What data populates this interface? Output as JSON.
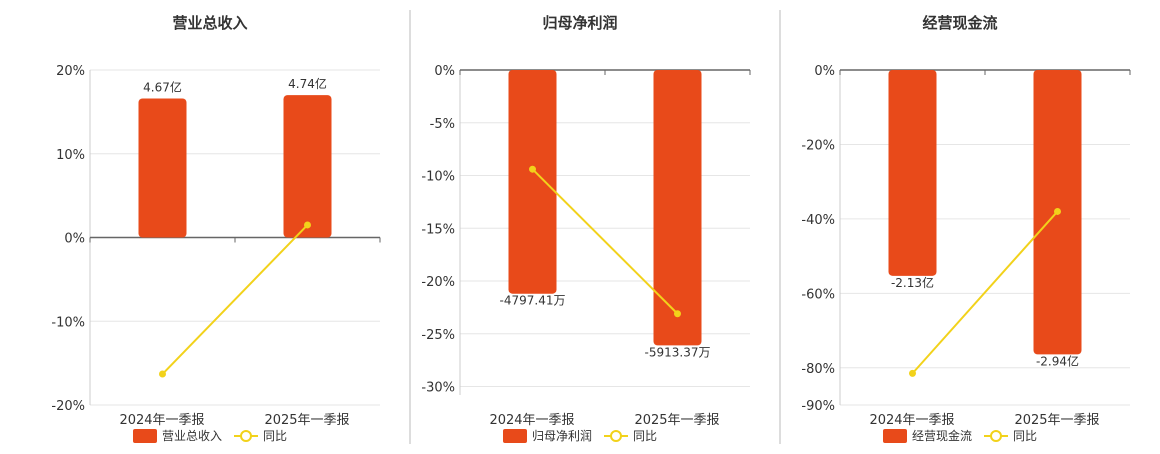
{
  "colors": {
    "bar": "#E84A1A",
    "line": "#F2D21B",
    "grid": "#E6E6E6",
    "axis": "#666666",
    "divider": "#BBBBBB"
  },
  "chart_data": [
    {
      "type": "bar",
      "title": "营业总收入",
      "categories": [
        "2024年一季报",
        "2025年一季报"
      ],
      "series": [
        {
          "name": "营业总收入",
          "type": "bar",
          "values": [
            16.6,
            17.0
          ],
          "labels": [
            "4.67亿",
            "4.74亿"
          ]
        },
        {
          "name": "同比",
          "type": "line",
          "values": [
            -16.3,
            1.5
          ]
        }
      ],
      "ylim": [
        -20,
        20
      ],
      "yticks": [
        20,
        10,
        0,
        -10,
        -20
      ],
      "ytick_labels": [
        "20%",
        "10%",
        "0%",
        "-10%",
        "-20%"
      ],
      "grid": true,
      "legend": "bottom-center"
    },
    {
      "type": "bar",
      "title": "归母净利润",
      "categories": [
        "2024年一季报",
        "2025年一季报"
      ],
      "series": [
        {
          "name": "归母净利润",
          "type": "bar",
          "values": [
            -21.2,
            -26.1
          ],
          "labels": [
            "-4797.41万",
            "-5913.37万"
          ]
        },
        {
          "name": "同比",
          "type": "line",
          "values": [
            -9.4,
            -23.1
          ]
        }
      ],
      "ylim": [
        -30.8,
        0
      ],
      "yticks": [
        0,
        -5,
        -10,
        -15,
        -20,
        -25,
        -30
      ],
      "ytick_labels": [
        "0%",
        "-5%",
        "-10%",
        "-15%",
        "-20%",
        "-25%",
        "-30%"
      ],
      "grid": true,
      "legend": "bottom-center"
    },
    {
      "type": "bar",
      "title": "经营现金流",
      "categories": [
        "2024年一季报",
        "2025年一季报"
      ],
      "series": [
        {
          "name": "经营现金流",
          "type": "bar",
          "values": [
            -55.3,
            -76.4
          ],
          "labels": [
            "-2.13亿",
            "-2.94亿"
          ]
        },
        {
          "name": "同比",
          "type": "line",
          "values": [
            -81.5,
            -38.0
          ]
        }
      ],
      "ylim": [
        -90,
        0
      ],
      "yticks": [
        0,
        -20,
        -40,
        -60,
        -80,
        -90
      ],
      "ytick_labels": [
        "0%",
        "-20%",
        "-40%",
        "-60%",
        "-80%",
        "-90%"
      ],
      "grid": true,
      "legend": "bottom-center"
    }
  ]
}
